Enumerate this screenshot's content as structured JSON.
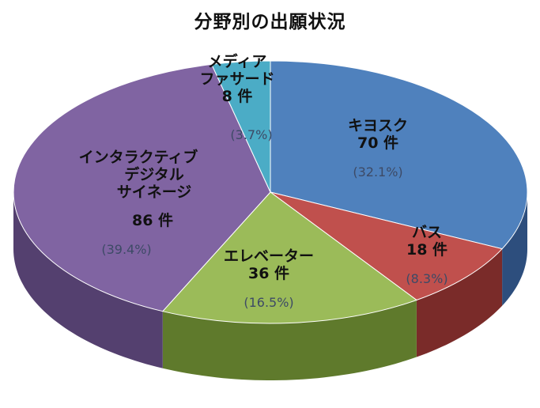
{
  "chart_data": {
    "type": "pie",
    "title": "分野別の出願状況",
    "unit": "件",
    "slices": [
      {
        "name": "キヨスク",
        "value": 70,
        "percent": "(32.1%)",
        "color": "#4f81bd",
        "side": "#2d4e7d"
      },
      {
        "name": "バス",
        "value": 18,
        "percent": "(8.3%)",
        "color": "#c0504d",
        "side": "#7a2b29"
      },
      {
        "name": "エレベーター",
        "value": 36,
        "percent": "(16.5%)",
        "color": "#9bbb59",
        "side": "#5f7a2c"
      },
      {
        "name": "インタラクティブ デジタル サイネージ",
        "value": 86,
        "percent": "(39.4%)",
        "color": "#8064a2",
        "side": "#54406f"
      },
      {
        "name": "メディア ファサード",
        "value": 8,
        "percent": "(3.7%)",
        "color": "#4bacc6",
        "side": "#2a7086"
      }
    ]
  }
}
